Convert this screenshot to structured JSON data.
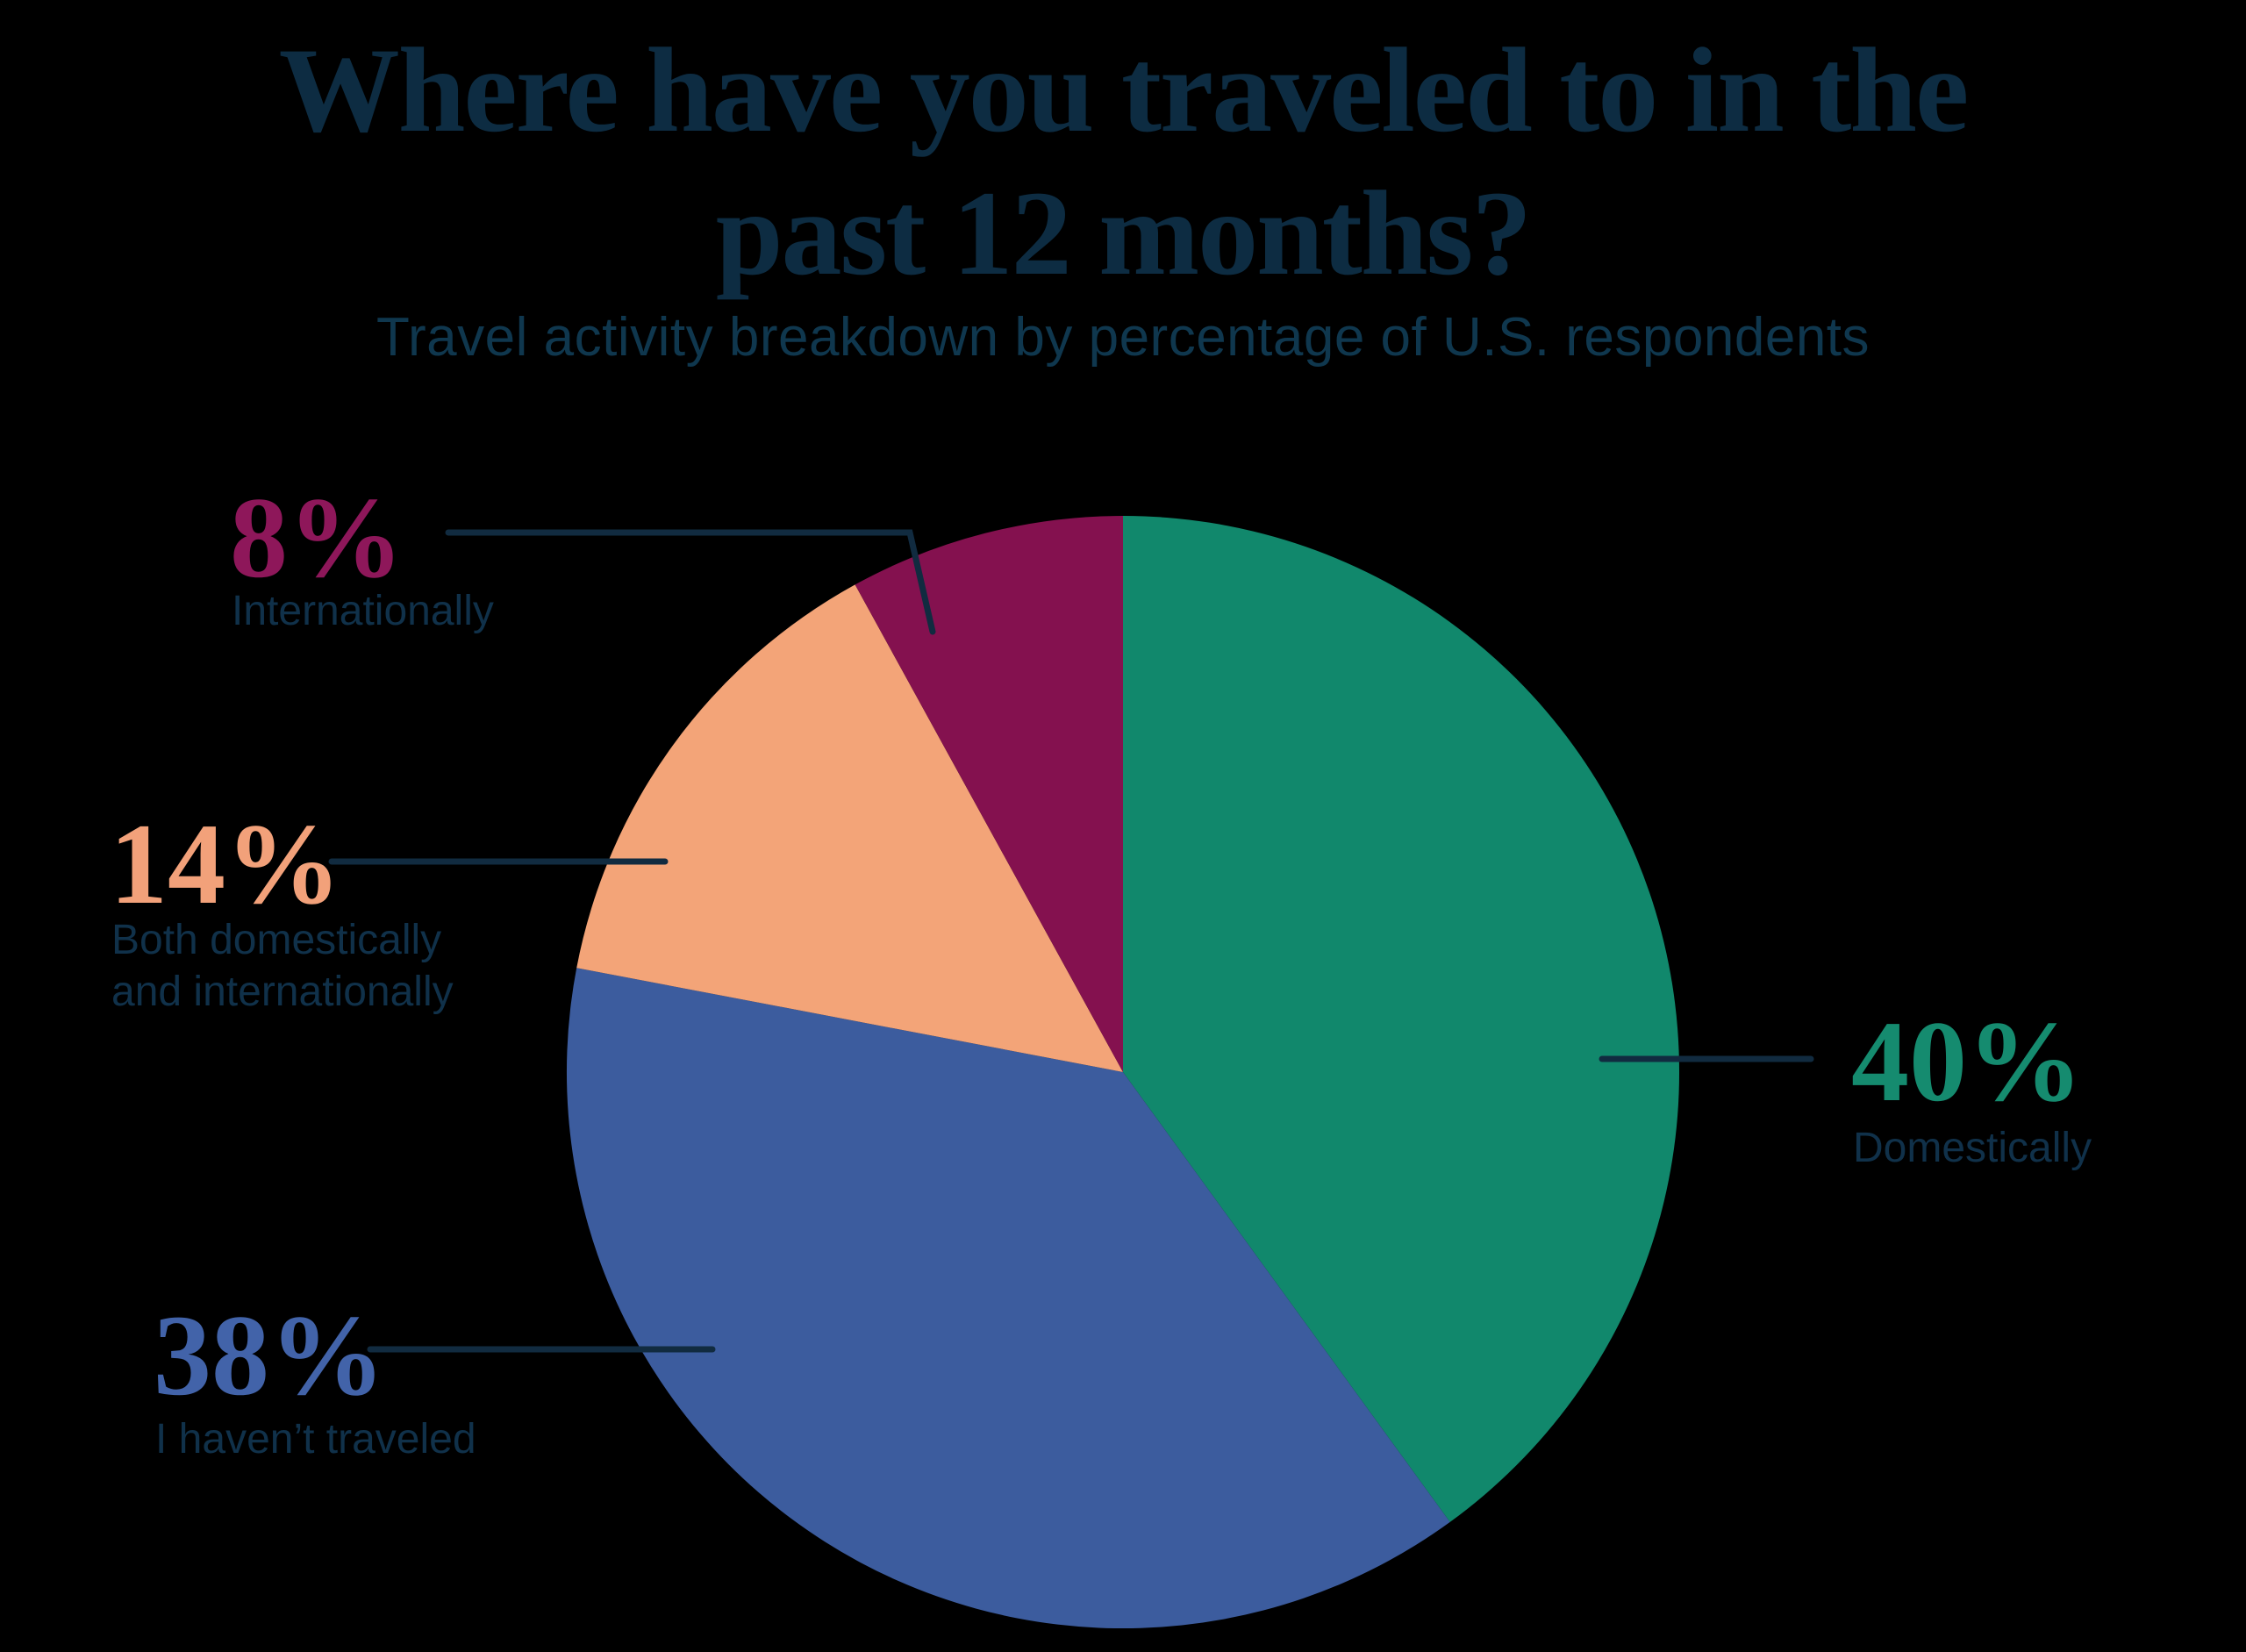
{
  "page": {
    "background": "#000000"
  },
  "chart_data": {
    "type": "pie",
    "title": "Where have you traveled to in the past 12 months?",
    "title_lines": [
      "Where have you traveled to in the",
      "past 12 months?"
    ],
    "subtitle": "Travel activity breakdown by percentage of U.S. respondents",
    "title_color": "#0D2C42",
    "subtitle_color": "#0F374E",
    "label_color": "#10314A",
    "leader_line_color": "#112B40",
    "start_angle_deg": 0,
    "direction": "clockwise",
    "legend_position": "callouts",
    "grid": false,
    "units": "percent of U.S. respondents",
    "slices": [
      {
        "label": "Domestically",
        "value": 40,
        "pct_label": "40%",
        "color": "#11886C",
        "pct_color": "#158B6F"
      },
      {
        "label": "I haven’t traveled",
        "value": 38,
        "pct_label": "38%",
        "color": "#3C5C9E",
        "pct_color": "#4263A9"
      },
      {
        "label": "Both domestically\nand internationally",
        "value": 14,
        "pct_label": "14%",
        "color": "#F3A478",
        "pct_color": "#F2A17A"
      },
      {
        "label": "Internationally",
        "value": 8,
        "pct_label": "8%",
        "color": "#84114F",
        "pct_color": "#8E175A"
      }
    ]
  }
}
